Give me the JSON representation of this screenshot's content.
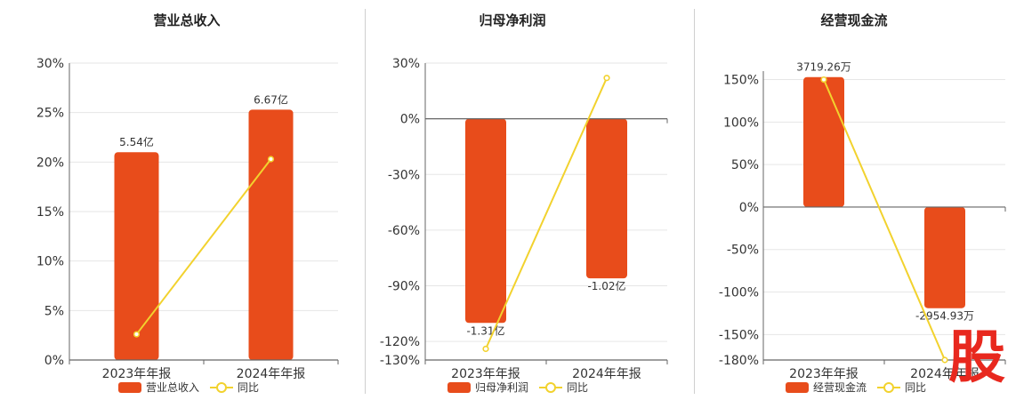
{
  "colors": {
    "bar": "#e84c1b",
    "line": "#f2d22e",
    "grid": "#e6e6e6",
    "axis": "#666666",
    "divider": "#cfcfcf"
  },
  "watermark": "股",
  "chart_data": [
    {
      "type": "bar",
      "title": "营业总收入",
      "categories": [
        "2023年年报",
        "2024年年报"
      ],
      "series": [
        {
          "name": "营业总收入",
          "kind": "bar",
          "values": [
            21.0,
            25.3
          ],
          "labels": [
            "5.54亿",
            "6.67亿"
          ]
        },
        {
          "name": "同比",
          "kind": "line",
          "values": [
            2.6,
            20.3
          ]
        }
      ],
      "y_ticks": [
        0,
        5,
        10,
        15,
        20,
        25,
        30
      ],
      "tick_labels": [
        "0%",
        "5%",
        "10%",
        "15%",
        "20%",
        "25%",
        "30%"
      ],
      "ylim": [
        0,
        30
      ],
      "grid": true,
      "legend": "bottom"
    },
    {
      "type": "bar",
      "title": "归母净利润",
      "categories": [
        "2023年年报",
        "2024年年报"
      ],
      "series": [
        {
          "name": "归母净利润",
          "kind": "bar",
          "values": [
            -110,
            -86
          ],
          "labels": [
            "-1.31亿",
            "-1.02亿"
          ]
        },
        {
          "name": "同比",
          "kind": "line",
          "values": [
            -124,
            22
          ]
        }
      ],
      "y_ticks": [
        30,
        0,
        -30,
        -60,
        -90,
        -120,
        -130
      ],
      "tick_labels": [
        "30%",
        "0%",
        "-30%",
        "-60%",
        "-90%",
        "-120%",
        "-130%"
      ],
      "ylim": [
        -130,
        30
      ],
      "grid": true,
      "legend": "bottom"
    },
    {
      "type": "bar",
      "title": "经营现金流",
      "categories": [
        "2023年年报",
        "2024年年报"
      ],
      "series": [
        {
          "name": "经营现金流",
          "kind": "bar",
          "values": [
            153,
            -119
          ],
          "labels": [
            "3719.26万",
            "-2954.93万"
          ]
        },
        {
          "name": "同比",
          "kind": "line",
          "values": [
            150,
            -180
          ]
        }
      ],
      "y_ticks": [
        150,
        100,
        50,
        0,
        -50,
        -100,
        -150,
        -180
      ],
      "tick_labels": [
        "150%",
        "100%",
        "50%",
        "0%",
        "-50%",
        "-100%",
        "-150%",
        "-180%"
      ],
      "ylim": [
        -180,
        160
      ],
      "grid": true,
      "legend": "bottom"
    }
  ]
}
